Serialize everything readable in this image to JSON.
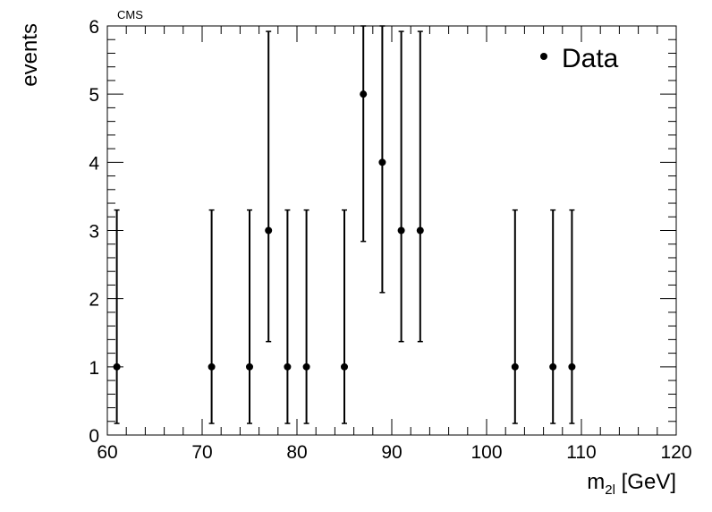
{
  "chart_data": {
    "type": "scatter",
    "title": "",
    "annotation": "CMS",
    "xlabel": "m",
    "xlabel_sub": "2l",
    "xlabel_unit": " [GeV]",
    "ylabel": "events",
    "xlim": [
      60,
      120
    ],
    "ylim": [
      0,
      6
    ],
    "x_ticks": [
      60,
      70,
      80,
      90,
      100,
      110,
      120
    ],
    "y_ticks": [
      0,
      1,
      2,
      3,
      4,
      5,
      6
    ],
    "grid": false,
    "legend": {
      "position": "top-right",
      "entries": [
        "Data"
      ]
    },
    "series": [
      {
        "name": "Data",
        "color": "#000000",
        "points": [
          {
            "x": 61,
            "y": 1,
            "err_low": 0.83,
            "err_high": 2.3
          },
          {
            "x": 71,
            "y": 1,
            "err_low": 0.83,
            "err_high": 2.3
          },
          {
            "x": 75,
            "y": 1,
            "err_low": 0.83,
            "err_high": 2.3
          },
          {
            "x": 77,
            "y": 3,
            "err_low": 1.63,
            "err_high": 2.92
          },
          {
            "x": 79,
            "y": 1,
            "err_low": 0.83,
            "err_high": 2.3
          },
          {
            "x": 81,
            "y": 1,
            "err_low": 0.83,
            "err_high": 2.3
          },
          {
            "x": 85,
            "y": 1,
            "err_low": 0.83,
            "err_high": 2.3
          },
          {
            "x": 87,
            "y": 5,
            "err_low": 2.16,
            "err_high": 3.38
          },
          {
            "x": 89,
            "y": 4,
            "err_low": 1.91,
            "err_high": 3.16
          },
          {
            "x": 91,
            "y": 3,
            "err_low": 1.63,
            "err_high": 2.92
          },
          {
            "x": 93,
            "y": 3,
            "err_low": 1.63,
            "err_high": 2.92
          },
          {
            "x": 103,
            "y": 1,
            "err_low": 0.83,
            "err_high": 2.3
          },
          {
            "x": 107,
            "y": 1,
            "err_low": 0.83,
            "err_high": 2.3
          },
          {
            "x": 109,
            "y": 1,
            "err_low": 0.83,
            "err_high": 2.3
          }
        ]
      }
    ]
  }
}
